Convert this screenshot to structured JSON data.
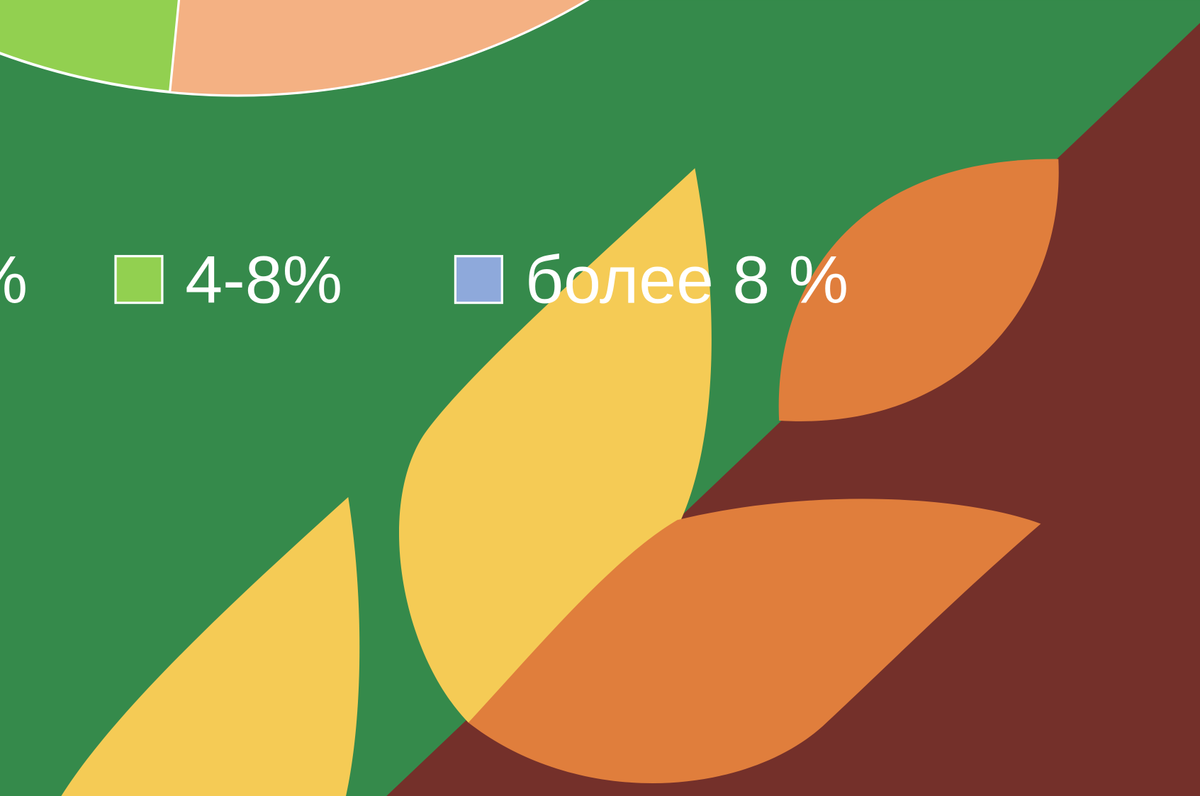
{
  "legend": {
    "items": [
      {
        "label": "%"
      },
      {
        "label": "4-8%"
      },
      {
        "label": "более 8 %"
      }
    ]
  }
}
